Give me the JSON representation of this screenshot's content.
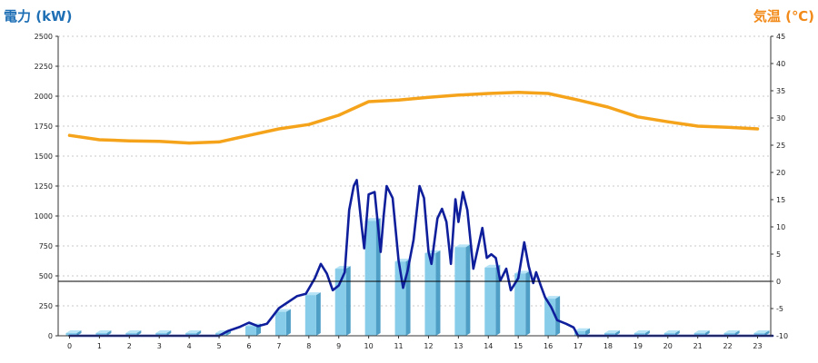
{
  "chart_data": {
    "type": "bar+line",
    "title_left": "電力 (kW)",
    "title_right": "気温 (℃)",
    "categories": [
      "0",
      "1",
      "2",
      "3",
      "4",
      "5",
      "6",
      "7",
      "8",
      "9",
      "10",
      "11",
      "12",
      "13",
      "14",
      "15",
      "16",
      "17",
      "18",
      "19",
      "20",
      "21",
      "22",
      "23"
    ],
    "y_left": {
      "min": 0,
      "max": 2500,
      "ticks": [
        0,
        250,
        500,
        750,
        1000,
        1250,
        1500,
        1750,
        2000,
        2250,
        2500
      ]
    },
    "y_right": {
      "min": -10,
      "max": 45,
      "ticks": [
        -10,
        -5,
        0,
        5,
        10,
        15,
        20,
        25,
        30,
        35,
        40,
        45
      ]
    },
    "zero_line_right": 0,
    "grid": true,
    "series": [
      {
        "kind": "bar",
        "axis": "left",
        "values": [
          0,
          0,
          0,
          0,
          0,
          20,
          80,
          200,
          340,
          560,
          960,
          620,
          690,
          740,
          570,
          520,
          310,
          40,
          0,
          0,
          0,
          0,
          0,
          0
        ],
        "color": "#87cdea",
        "side_color": "#4f9ec6",
        "top_color": "#b6e3f5"
      },
      {
        "kind": "line",
        "axis": "right",
        "color": "#f5a31a",
        "points": [
          [
            0,
            26.8
          ],
          [
            1,
            26.0
          ],
          [
            2,
            25.8
          ],
          [
            3,
            25.7
          ],
          [
            4,
            25.4
          ],
          [
            5,
            25.6
          ],
          [
            6,
            26.8
          ],
          [
            7,
            28.0
          ],
          [
            8,
            28.8
          ],
          [
            9,
            30.5
          ],
          [
            10,
            33.0
          ],
          [
            11,
            33.3
          ],
          [
            12,
            33.8
          ],
          [
            13,
            34.2
          ],
          [
            14,
            34.5
          ],
          [
            15,
            34.7
          ],
          [
            16,
            34.5
          ],
          [
            17,
            33.3
          ],
          [
            18,
            32.0
          ],
          [
            19,
            30.2
          ],
          [
            20,
            29.3
          ],
          [
            21,
            28.5
          ],
          [
            22,
            28.3
          ],
          [
            23,
            28.0
          ]
        ]
      },
      {
        "kind": "line",
        "axis": "left",
        "color": "#0f1f9c",
        "points": [
          [
            0,
            0
          ],
          [
            1,
            0
          ],
          [
            2,
            0
          ],
          [
            3,
            0
          ],
          [
            4,
            0
          ],
          [
            5,
            0
          ],
          [
            5.3,
            40
          ],
          [
            5.7,
            75
          ],
          [
            6.0,
            110
          ],
          [
            6.3,
            80
          ],
          [
            6.6,
            100
          ],
          [
            7.0,
            230
          ],
          [
            7.3,
            280
          ],
          [
            7.6,
            330
          ],
          [
            7.9,
            350
          ],
          [
            8.2,
            480
          ],
          [
            8.4,
            600
          ],
          [
            8.6,
            520
          ],
          [
            8.8,
            380
          ],
          [
            9.0,
            420
          ],
          [
            9.2,
            530
          ],
          [
            9.35,
            1050
          ],
          [
            9.5,
            1250
          ],
          [
            9.6,
            1300
          ],
          [
            9.75,
            950
          ],
          [
            9.85,
            730
          ],
          [
            10.0,
            1180
          ],
          [
            10.2,
            1200
          ],
          [
            10.4,
            700
          ],
          [
            10.5,
            1000
          ],
          [
            10.6,
            1250
          ],
          [
            10.8,
            1150
          ],
          [
            11.0,
            630
          ],
          [
            11.15,
            400
          ],
          [
            11.3,
            540
          ],
          [
            11.5,
            800
          ],
          [
            11.7,
            1250
          ],
          [
            11.85,
            1150
          ],
          [
            12.0,
            700
          ],
          [
            12.1,
            600
          ],
          [
            12.3,
            980
          ],
          [
            12.45,
            1060
          ],
          [
            12.6,
            950
          ],
          [
            12.75,
            600
          ],
          [
            12.9,
            1140
          ],
          [
            13.0,
            950
          ],
          [
            13.15,
            1200
          ],
          [
            13.3,
            1050
          ],
          [
            13.5,
            560
          ],
          [
            13.8,
            900
          ],
          [
            13.95,
            650
          ],
          [
            14.1,
            680
          ],
          [
            14.25,
            650
          ],
          [
            14.4,
            460
          ],
          [
            14.6,
            560
          ],
          [
            14.75,
            380
          ],
          [
            15.0,
            480
          ],
          [
            15.2,
            780
          ],
          [
            15.35,
            580
          ],
          [
            15.5,
            440
          ],
          [
            15.6,
            530
          ],
          [
            15.75,
            420
          ],
          [
            15.9,
            320
          ],
          [
            16.1,
            240
          ],
          [
            16.3,
            130
          ],
          [
            16.6,
            100
          ],
          [
            16.85,
            70
          ],
          [
            17.0,
            0
          ],
          [
            17.5,
            0
          ],
          [
            23.5,
            0
          ]
        ]
      }
    ]
  }
}
